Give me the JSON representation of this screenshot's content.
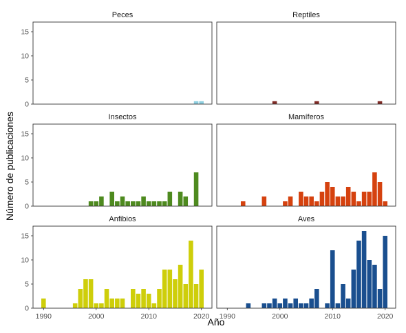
{
  "chart_data": {
    "type": "bar",
    "xlabel": "Año",
    "ylabel": "Número de publicaciones",
    "xlim": [
      1988,
      2022
    ],
    "ylim": [
      0,
      17
    ],
    "x_ticks": [
      1990,
      2000,
      2010,
      2020
    ],
    "y_ticks": [
      0,
      5,
      10,
      15
    ],
    "grid": false,
    "facets": [
      {
        "name": "Peces",
        "color": "#8ecfe0",
        "x": [
          2019,
          2020
        ],
        "values": [
          0.6,
          0.6
        ]
      },
      {
        "name": "Reptiles",
        "color": "#7f2a24",
        "x": [
          1999,
          2007,
          2019
        ],
        "values": [
          0.6,
          0.6,
          0.6
        ]
      },
      {
        "name": "Insectos",
        "color": "#4e8a1f",
        "x": [
          1999,
          2000,
          2001,
          2003,
          2004,
          2005,
          2006,
          2007,
          2008,
          2009,
          2010,
          2011,
          2012,
          2013,
          2014,
          2016,
          2017,
          2019
        ],
        "values": [
          1,
          1,
          2,
          3,
          1,
          2,
          1,
          1,
          1,
          2,
          1,
          1,
          1,
          1,
          3,
          3,
          2,
          7
        ]
      },
      {
        "name": "Mamíferos",
        "color": "#d5420f",
        "x": [
          1993,
          1997,
          2001,
          2002,
          2004,
          2005,
          2006,
          2007,
          2008,
          2009,
          2010,
          2011,
          2012,
          2013,
          2014,
          2015,
          2016,
          2017,
          2018,
          2019,
          2020
        ],
        "values": [
          1,
          2,
          1,
          2,
          3,
          2,
          2,
          1,
          3,
          5,
          4,
          2,
          2,
          4,
          3,
          1,
          3,
          3,
          7,
          5,
          1
        ]
      },
      {
        "name": "Anfibios",
        "color": "#cece0a",
        "x": [
          1990,
          1996,
          1997,
          1998,
          1999,
          2000,
          2001,
          2002,
          2003,
          2004,
          2005,
          2007,
          2008,
          2009,
          2010,
          2011,
          2012,
          2013,
          2014,
          2015,
          2016,
          2017,
          2018,
          2019,
          2020
        ],
        "values": [
          2,
          1,
          4,
          6,
          6,
          1,
          1,
          4,
          2,
          2,
          2,
          4,
          3,
          4,
          3,
          1,
          4,
          8,
          8,
          6,
          9,
          5,
          14,
          5,
          8
        ]
      },
      {
        "name": "Aves",
        "color": "#1a4f8f",
        "x": [
          1994,
          1997,
          1998,
          1999,
          2000,
          2001,
          2002,
          2003,
          2004,
          2005,
          2006,
          2007,
          2009,
          2010,
          2011,
          2012,
          2013,
          2014,
          2015,
          2016,
          2017,
          2018,
          2019,
          2020
        ],
        "values": [
          1,
          1,
          1,
          2,
          1,
          2,
          1,
          2,
          1,
          1,
          2,
          4,
          1,
          12,
          1,
          5,
          2,
          8,
          14,
          16,
          10,
          9,
          4,
          15
        ]
      }
    ]
  }
}
